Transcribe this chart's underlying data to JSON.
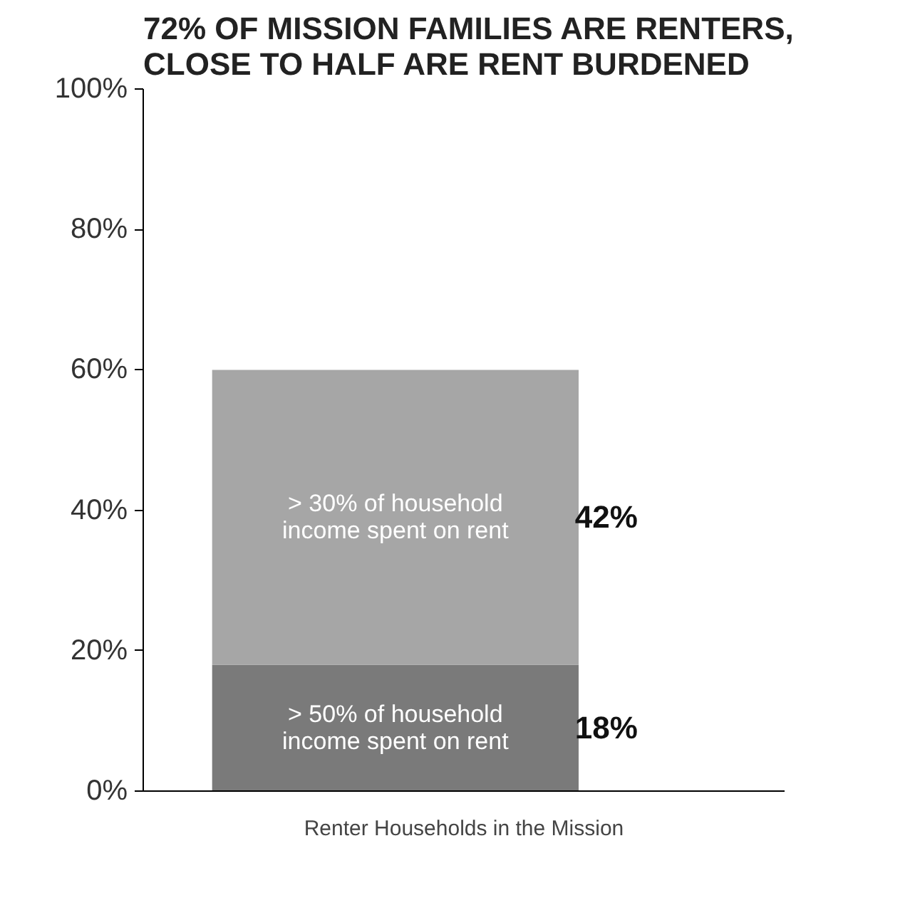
{
  "chart_data": {
    "type": "bar",
    "title": "72% OF MISSION FAMILIES ARE RENTERS,\nCLOSE TO HALF ARE RENT BURDENED",
    "xlabel": "Renter Households in the Mission",
    "categories": [
      null
    ],
    "stacked": true,
    "series": [
      {
        "name": "> 50% of household income spent on rent",
        "color": "#7a7a7a",
        "values": [
          18
        ],
        "value_labels": [
          "18%"
        ]
      },
      {
        "name": "> 30% of household income spent on rent",
        "color": "#a6a6a6",
        "values": [
          42
        ],
        "value_labels": [
          "42%"
        ]
      }
    ],
    "ylim": [
      0,
      100
    ],
    "yticks": [
      {
        "value": 0,
        "label": "0%"
      },
      {
        "value": 20,
        "label": "20%"
      },
      {
        "value": 40,
        "label": "40%"
      },
      {
        "value": 60,
        "label": "60%"
      },
      {
        "value": 80,
        "label": "80%"
      },
      {
        "value": 100,
        "label": "100%"
      }
    ],
    "grid": false,
    "legend": false
  }
}
